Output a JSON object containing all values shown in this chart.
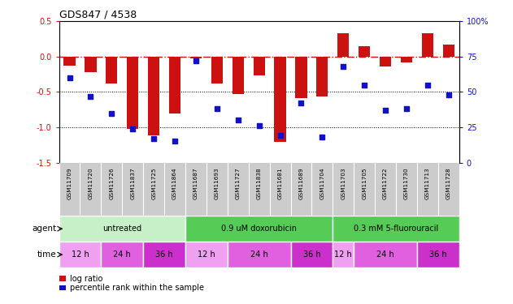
{
  "title": "GDS847 / 4538",
  "samples": [
    "GSM11709",
    "GSM11720",
    "GSM11726",
    "GSM11837",
    "GSM11725",
    "GSM11864",
    "GSM11687",
    "GSM11693",
    "GSM11727",
    "GSM11838",
    "GSM11681",
    "GSM11689",
    "GSM11704",
    "GSM11703",
    "GSM11705",
    "GSM11722",
    "GSM11730",
    "GSM11713",
    "GSM11728"
  ],
  "log_ratio": [
    -0.13,
    -0.22,
    -0.38,
    -1.02,
    -1.12,
    -0.8,
    -0.03,
    -0.38,
    -0.53,
    -0.27,
    -1.21,
    -0.59,
    -0.56,
    0.33,
    0.15,
    -0.14,
    -0.08,
    0.33,
    0.17
  ],
  "percentile": [
    60,
    47,
    35,
    24,
    17,
    15,
    72,
    38,
    30,
    26,
    19,
    42,
    18,
    68,
    55,
    37,
    38,
    55,
    48
  ],
  "bar_color": "#cc1111",
  "dot_color": "#1111cc",
  "ylim_left": [
    -1.5,
    0.5
  ],
  "ylim_right": [
    0,
    100
  ],
  "yticks_left": [
    -1.5,
    -1.0,
    -0.5,
    0.0,
    0.5
  ],
  "yticks_right": [
    0,
    25,
    50,
    75,
    100
  ],
  "ytick_labels_right": [
    "0",
    "25",
    "50",
    "75",
    "100%"
  ],
  "agent_ranges": [
    [
      0,
      5,
      "#c8f0c8",
      "untreated"
    ],
    [
      6,
      12,
      "#55cc55",
      "0.9 uM doxorubicin"
    ],
    [
      13,
      18,
      "#55cc55",
      "0.3 mM 5-fluorouracil"
    ]
  ],
  "time_ranges": [
    [
      0,
      1,
      "#f0a0f0",
      "12 h"
    ],
    [
      2,
      3,
      "#e060e0",
      "24 h"
    ],
    [
      4,
      5,
      "#cc30cc",
      "36 h"
    ],
    [
      6,
      7,
      "#f0a0f0",
      "12 h"
    ],
    [
      8,
      10,
      "#e060e0",
      "24 h"
    ],
    [
      11,
      12,
      "#cc30cc",
      "36 h"
    ],
    [
      13,
      13,
      "#f0a0f0",
      "12 h"
    ],
    [
      14,
      16,
      "#e060e0",
      "24 h"
    ],
    [
      17,
      18,
      "#cc30cc",
      "36 h"
    ]
  ],
  "label_bg": "#cccccc",
  "label_divider": "#ffffff",
  "fig_bg": "#ffffff"
}
